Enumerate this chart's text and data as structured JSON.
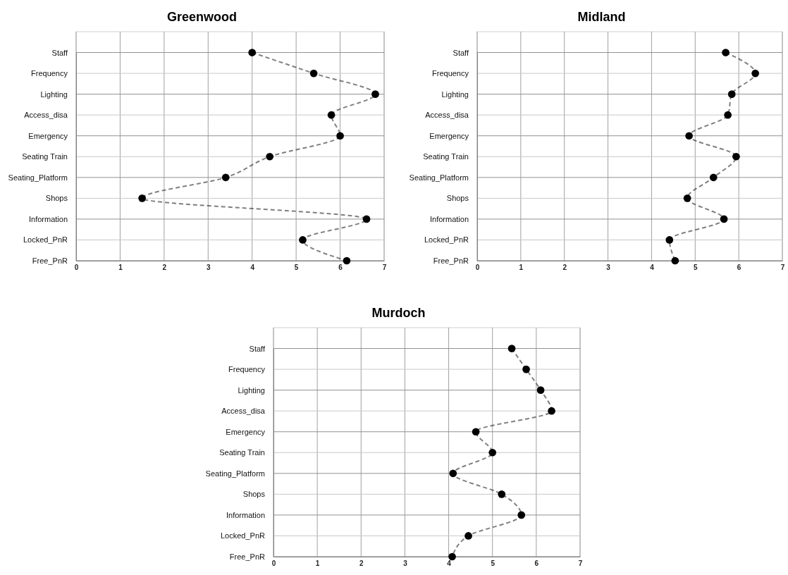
{
  "chart_data": [
    {
      "type": "line",
      "title": "Greenwood",
      "orientation": "horizontal",
      "categories": [
        "Staff",
        "Frequency",
        "Lighting",
        "Access_disa",
        "Emergency",
        "Seating Train",
        "Seating_Platform",
        "Shops",
        "Information",
        "Locked_PnR",
        "Free_PnR"
      ],
      "series": [
        {
          "color": "#000000",
          "values": [
            4.0,
            5.4,
            6.8,
            5.8,
            6.0,
            4.4,
            3.4,
            1.5,
            6.6,
            5.15,
            6.15
          ]
        }
      ],
      "xlim": [
        0,
        7
      ],
      "xticks": [
        0,
        1,
        2,
        3,
        4,
        5,
        6,
        7
      ],
      "grid": true,
      "marker": "circle",
      "line_style": "dashed"
    },
    {
      "type": "line",
      "title": "Midland",
      "orientation": "horizontal",
      "categories": [
        "Staff",
        "Frequency",
        "Lighting",
        "Access_disa",
        "Emergency",
        "Seating Train",
        "Seating_Platform",
        "Shops",
        "Information",
        "Locked_PnR",
        "Free_PnR"
      ],
      "series": [
        {
          "color": "#000000",
          "values": [
            5.7,
            6.38,
            5.84,
            5.75,
            4.86,
            5.94,
            5.42,
            4.82,
            5.66,
            4.41,
            4.54
          ]
        }
      ],
      "xlim": [
        0,
        7
      ],
      "xticks": [
        0,
        1,
        2,
        3,
        4,
        5,
        6,
        7
      ],
      "grid": true,
      "marker": "circle",
      "line_style": "dashed"
    },
    {
      "type": "line",
      "title": "Murdoch",
      "orientation": "horizontal",
      "categories": [
        "Staff",
        "Frequency",
        "Lighting",
        "Access_disa",
        "Emergency",
        "Seating Train",
        "Seating_Platform",
        "Shops",
        "Information",
        "Locked_PnR",
        "Free_PnR"
      ],
      "series": [
        {
          "color": "#000000",
          "values": [
            5.44,
            5.77,
            6.1,
            6.35,
            4.62,
            5.0,
            4.1,
            5.21,
            5.66,
            4.45,
            4.08
          ]
        }
      ],
      "xlim": [
        0,
        7
      ],
      "xticks": [
        0,
        1,
        2,
        3,
        4,
        5,
        6,
        7
      ],
      "grid": true,
      "marker": "circle",
      "line_style": "dashed"
    }
  ]
}
